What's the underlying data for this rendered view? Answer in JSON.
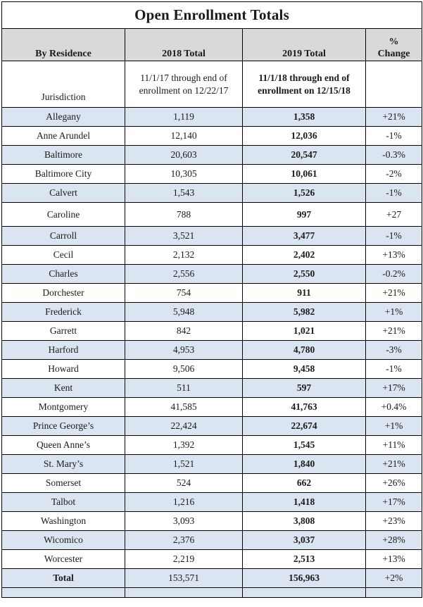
{
  "title": "Open Enrollment Totals",
  "columns": {
    "residence": "By Residence",
    "total2018": "2018 Total",
    "total2019": "2019 Total",
    "pct_change": "% Change"
  },
  "subheader": {
    "residence": "Jurisdiction",
    "total2018": "11/1/17 through end of enrollment on 12/22/17",
    "total2019": "11/1/18 through end of enrollment on 12/15/18",
    "pct_change": ""
  },
  "rows": [
    {
      "jurisdiction": "Allegany",
      "t2018": "1,119",
      "t2019": "1,358",
      "change": "+21%"
    },
    {
      "jurisdiction": "Anne Arundel",
      "t2018": "12,140",
      "t2019": "12,036",
      "change": "-1%"
    },
    {
      "jurisdiction": "Baltimore",
      "t2018": "20,603",
      "t2019": "20,547",
      "change": "-0.3%"
    },
    {
      "jurisdiction": "Baltimore City",
      "t2018": "10,305",
      "t2019": "10,061",
      "change": "-2%"
    },
    {
      "jurisdiction": "Calvert",
      "t2018": "1,543",
      "t2019": "1,526",
      "change": "-1%"
    },
    {
      "jurisdiction": "Caroline",
      "t2018": "788",
      "t2019": "997",
      "change": "+27"
    },
    {
      "jurisdiction": "Carroll",
      "t2018": "3,521",
      "t2019": "3,477",
      "change": "-1%"
    },
    {
      "jurisdiction": "Cecil",
      "t2018": "2,132",
      "t2019": "2,402",
      "change": "+13%"
    },
    {
      "jurisdiction": "Charles",
      "t2018": "2,556",
      "t2019": "2,550",
      "change": "-0.2%"
    },
    {
      "jurisdiction": "Dorchester",
      "t2018": "754",
      "t2019": "911",
      "change": "+21%"
    },
    {
      "jurisdiction": "Frederick",
      "t2018": "5,948",
      "t2019": "5,982",
      "change": "+1%"
    },
    {
      "jurisdiction": "Garrett",
      "t2018": "842",
      "t2019": "1,021",
      "change": "+21%"
    },
    {
      "jurisdiction": "Harford",
      "t2018": "4,953",
      "t2019": "4,780",
      "change": "-3%"
    },
    {
      "jurisdiction": "Howard",
      "t2018": "9,506",
      "t2019": "9,458",
      "change": "-1%"
    },
    {
      "jurisdiction": "Kent",
      "t2018": "511",
      "t2019": "597",
      "change": "+17%"
    },
    {
      "jurisdiction": "Montgomery",
      "t2018": "41,585",
      "t2019": "41,763",
      "change": "+0.4%"
    },
    {
      "jurisdiction": "Prince George’s",
      "t2018": "22,424",
      "t2019": "22,674",
      "change": "+1%"
    },
    {
      "jurisdiction": "Queen Anne’s",
      "t2018": "1,392",
      "t2019": "1,545",
      "change": "+11%"
    },
    {
      "jurisdiction": "St. Mary’s",
      "t2018": "1,521",
      "t2019": "1,840",
      "change": "+21%"
    },
    {
      "jurisdiction": "Somerset",
      "t2018": "524",
      "t2019": "662",
      "change": "+26%"
    },
    {
      "jurisdiction": "Talbot",
      "t2018": "1,216",
      "t2019": "1,418",
      "change": "+17%"
    },
    {
      "jurisdiction": "Washington",
      "t2018": "3,093",
      "t2019": "3,808",
      "change": "+23%"
    },
    {
      "jurisdiction": "Wicomico",
      "t2018": "2,376",
      "t2019": "3,037",
      "change": "+28%"
    },
    {
      "jurisdiction": "Worcester",
      "t2018": "2,219",
      "t2019": "2,513",
      "change": "+13%"
    }
  ],
  "total_row": {
    "jurisdiction": "Total",
    "t2018": "153,571",
    "t2019": "156,963",
    "change": "+2%"
  },
  "colors": {
    "header_bg": "#d9d9d9",
    "alt_row_bg": "#dbe5f1",
    "border": "#000000",
    "text": "#1a1a1a"
  }
}
